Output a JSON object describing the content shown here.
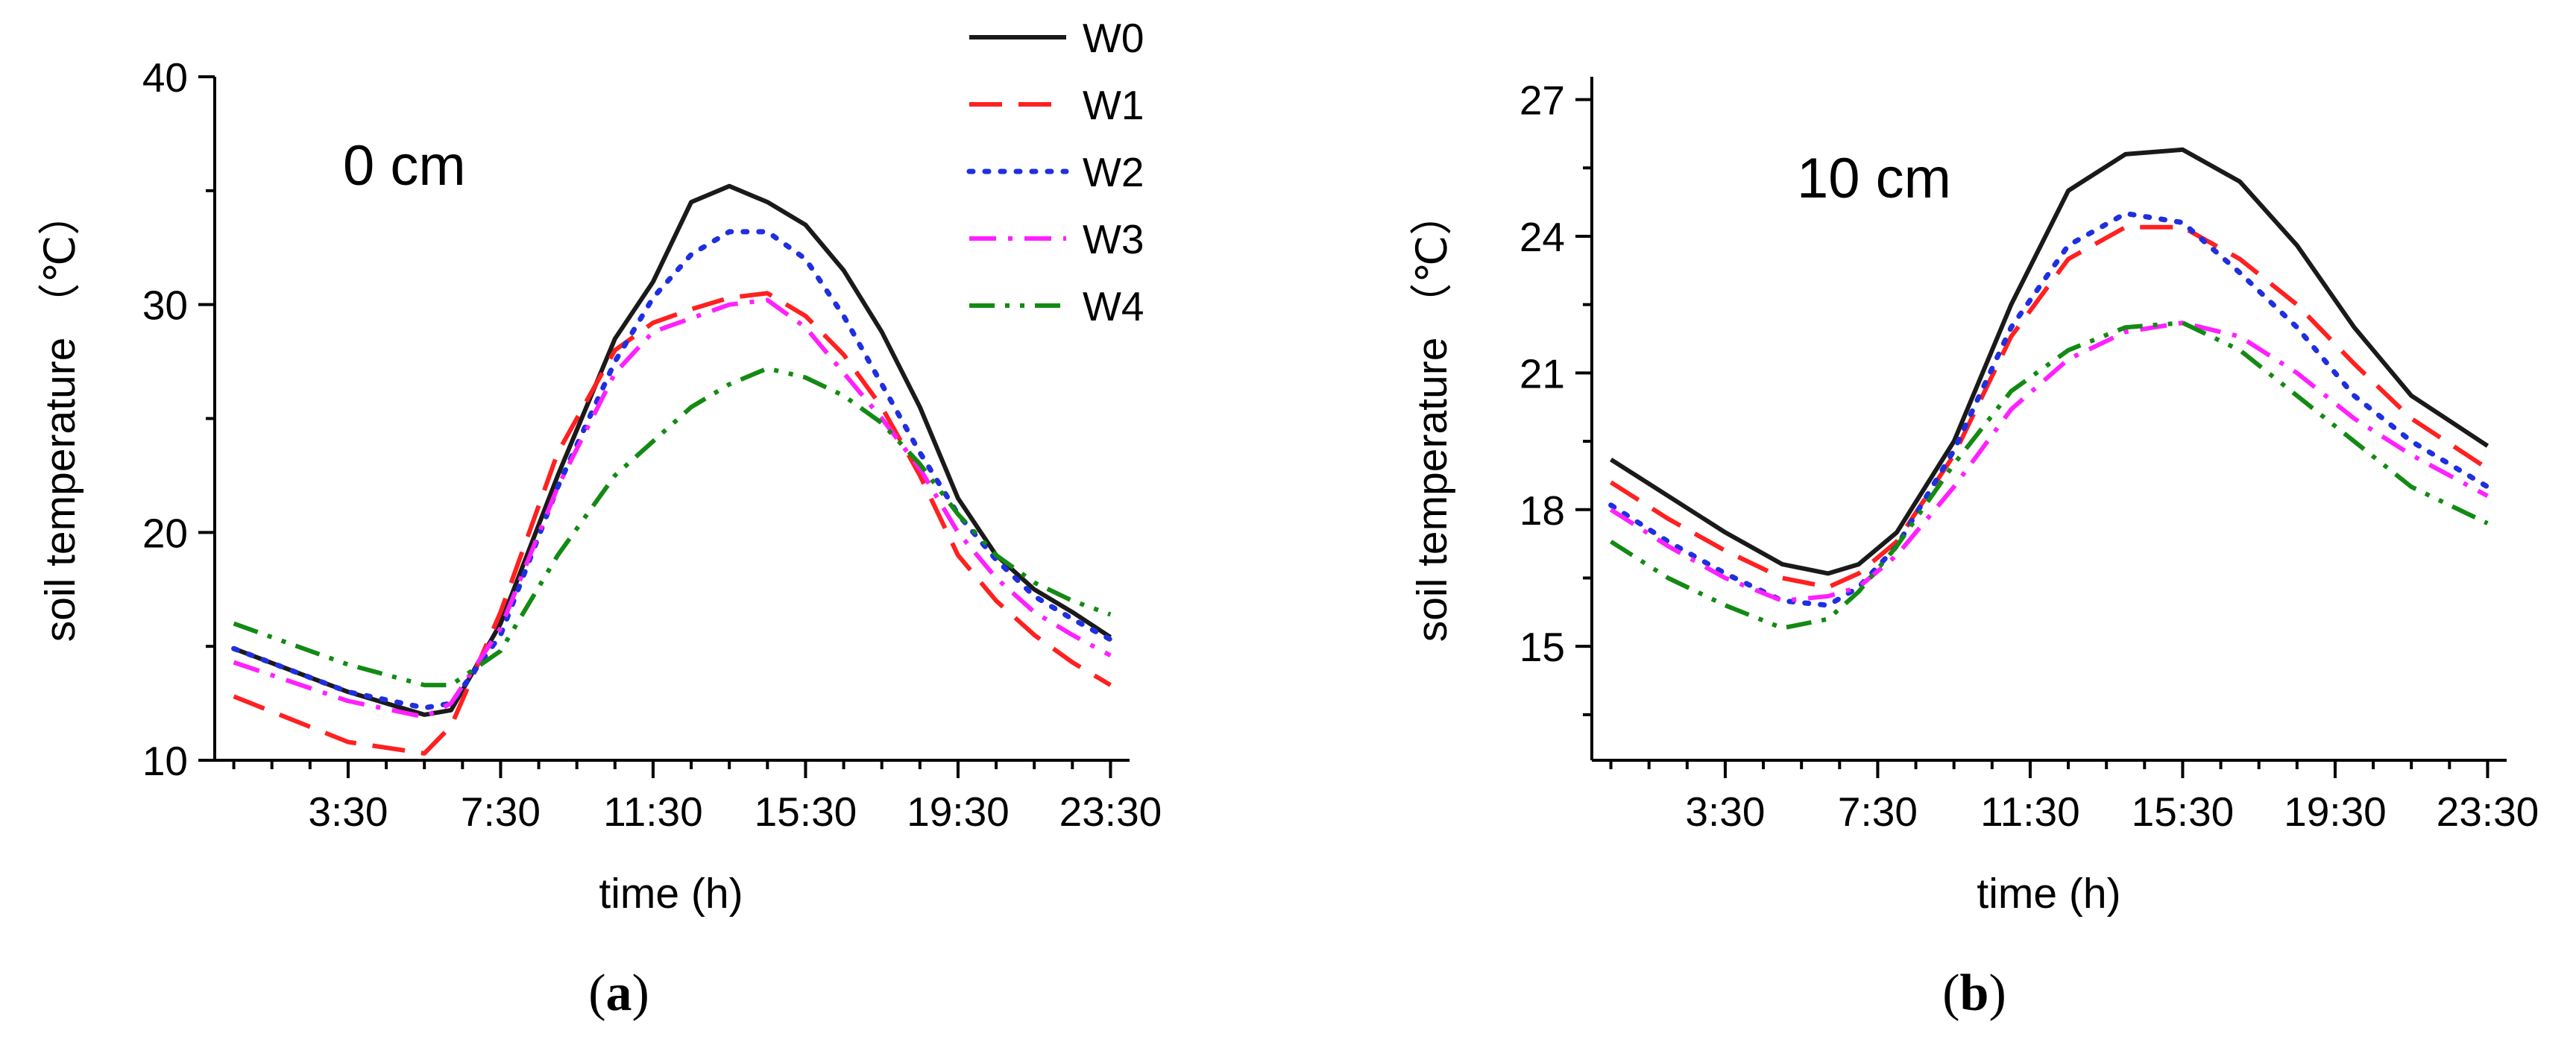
{
  "figure": {
    "legend": {
      "entries": [
        "W0",
        "W1",
        "W2",
        "W3",
        "W4"
      ],
      "placement": "top-right of panel (a)"
    },
    "series_styles": [
      {
        "name": "W0",
        "color": "#1a1a1a",
        "dash": "solid"
      },
      {
        "name": "W1",
        "color": "#ff2020",
        "dash": "dash"
      },
      {
        "name": "W2",
        "color": "#1f2fe0",
        "dash": "dot"
      },
      {
        "name": "W3",
        "color": "#ff20ff",
        "dash": "dashdot"
      },
      {
        "name": "W4",
        "color": "#138a13",
        "dash": "dashdotdot"
      }
    ]
  },
  "chart_data": [
    {
      "type": "line",
      "panel": "a",
      "caption": "(a)",
      "caption_letter": "a",
      "annotation": "0 cm",
      "title": "",
      "xlabel": "time (h)",
      "ylabel": "soil temperature （℃）",
      "xlim": [
        0,
        24
      ],
      "ylim": [
        10,
        40
      ],
      "x_tick_values": [
        3.5,
        7.5,
        11.5,
        15.5,
        19.5,
        23.5
      ],
      "x_tick_labels": [
        "3:30",
        "7:30",
        "11:30",
        "15:30",
        "19:30",
        "23:30"
      ],
      "y_ticks": [
        10,
        20,
        30,
        40
      ],
      "y_tick_labels": [
        "10",
        "20",
        "30",
        "40"
      ],
      "y_minor_ticks": [
        15,
        25,
        35
      ],
      "series": [
        {
          "name": "W0",
          "x": [
            0.5,
            3.5,
            5.5,
            6.2,
            7.5,
            9.0,
            10.5,
            11.5,
            12.5,
            13.5,
            14.5,
            15.5,
            16.5,
            17.5,
            18.5,
            19.5,
            20.5,
            21.5,
            22.5,
            23.5
          ],
          "values": [
            14.9,
            13.0,
            12.0,
            12.2,
            16.0,
            22.5,
            28.5,
            31.0,
            34.5,
            35.2,
            34.5,
            33.5,
            31.5,
            28.8,
            25.5,
            21.5,
            19.0,
            17.5,
            16.5,
            15.4
          ]
        },
        {
          "name": "W1",
          "x": [
            0.5,
            3.5,
            5.5,
            6.2,
            7.5,
            9.0,
            10.5,
            11.5,
            12.5,
            13.5,
            14.5,
            15.5,
            16.5,
            17.5,
            18.5,
            19.5,
            20.5,
            21.5,
            22.5,
            23.5
          ],
          "values": [
            12.8,
            10.8,
            10.3,
            11.5,
            16.5,
            23.5,
            28.0,
            29.2,
            29.8,
            30.3,
            30.5,
            29.5,
            27.8,
            25.5,
            22.5,
            19.0,
            17.0,
            15.5,
            14.3,
            13.3
          ]
        },
        {
          "name": "W2",
          "x": [
            0.5,
            3.5,
            5.5,
            6.2,
            7.5,
            9.0,
            10.5,
            11.5,
            12.5,
            13.5,
            14.5,
            15.5,
            16.5,
            17.5,
            18.5,
            19.5,
            20.5,
            21.5,
            22.5,
            23.5
          ],
          "values": [
            14.9,
            13.0,
            12.3,
            12.5,
            15.5,
            22.0,
            27.5,
            30.3,
            32.2,
            33.2,
            33.2,
            32.0,
            29.5,
            26.5,
            23.5,
            20.8,
            18.8,
            17.2,
            16.2,
            15.3
          ]
        },
        {
          "name": "W3",
          "x": [
            0.5,
            3.5,
            5.5,
            6.2,
            7.5,
            9.0,
            10.5,
            11.5,
            12.5,
            13.5,
            14.5,
            15.5,
            16.5,
            17.5,
            18.5,
            19.5,
            20.5,
            21.5,
            22.5,
            23.5
          ],
          "values": [
            14.3,
            12.6,
            11.9,
            12.5,
            15.8,
            22.0,
            27.0,
            28.8,
            29.4,
            30.0,
            30.2,
            29.0,
            27.0,
            25.0,
            22.8,
            20.0,
            18.0,
            16.5,
            15.5,
            14.6
          ]
        },
        {
          "name": "W4",
          "x": [
            0.5,
            3.5,
            5.5,
            6.2,
            7.5,
            9.0,
            10.5,
            11.5,
            12.5,
            13.5,
            14.5,
            15.5,
            16.5,
            17.5,
            18.5,
            19.5,
            20.5,
            21.5,
            22.5,
            23.5
          ],
          "values": [
            16.0,
            14.2,
            13.3,
            13.3,
            14.8,
            19.0,
            22.5,
            24.0,
            25.5,
            26.5,
            27.2,
            26.8,
            26.0,
            24.8,
            23.0,
            20.8,
            19.0,
            17.8,
            17.0,
            16.4
          ]
        }
      ]
    },
    {
      "type": "line",
      "panel": "b",
      "caption": "(b)",
      "caption_letter": "b",
      "annotation": "10 cm",
      "title": "",
      "xlabel": "time (h)",
      "ylabel": "soil temperature （℃）",
      "xlim": [
        0,
        24
      ],
      "ylim": [
        12.5,
        27.5
      ],
      "x_tick_values": [
        3.5,
        7.5,
        11.5,
        15.5,
        19.5,
        23.5
      ],
      "x_tick_labels": [
        "3:30",
        "7:30",
        "11:30",
        "15:30",
        "19:30",
        "23:30"
      ],
      "y_ticks": [
        15,
        18,
        21,
        24,
        27
      ],
      "y_tick_labels": [
        "15",
        "18",
        "21",
        "24",
        "27"
      ],
      "y_minor_ticks": [
        13.5,
        16.5,
        19.5,
        22.5,
        25.5
      ],
      "series": [
        {
          "name": "W0",
          "x": [
            0.5,
            2.0,
            3.5,
            5.0,
            6.2,
            7.0,
            8.0,
            9.5,
            11.0,
            12.5,
            14.0,
            15.5,
            17.0,
            18.5,
            20.0,
            21.5,
            23.5
          ],
          "values": [
            19.1,
            18.3,
            17.5,
            16.8,
            16.6,
            16.8,
            17.5,
            19.5,
            22.5,
            25.0,
            25.8,
            25.9,
            25.2,
            23.8,
            22.0,
            20.5,
            19.4
          ]
        },
        {
          "name": "W1",
          "x": [
            0.5,
            2.0,
            3.5,
            5.0,
            6.2,
            7.0,
            8.0,
            9.5,
            11.0,
            12.5,
            14.0,
            15.5,
            17.0,
            18.5,
            20.0,
            21.5,
            23.5
          ],
          "values": [
            18.6,
            17.8,
            17.1,
            16.5,
            16.3,
            16.6,
            17.3,
            19.2,
            21.8,
            23.5,
            24.2,
            24.2,
            23.5,
            22.5,
            21.2,
            20.0,
            18.9
          ]
        },
        {
          "name": "W2",
          "x": [
            0.5,
            2.0,
            3.5,
            5.0,
            6.2,
            7.0,
            8.0,
            9.5,
            11.0,
            12.5,
            14.0,
            15.5,
            17.0,
            18.5,
            20.0,
            21.5,
            23.5
          ],
          "values": [
            18.1,
            17.3,
            16.6,
            16.0,
            15.9,
            16.3,
            17.2,
            19.3,
            22.0,
            23.8,
            24.5,
            24.3,
            23.2,
            22.0,
            20.5,
            19.5,
            18.5
          ]
        },
        {
          "name": "W3",
          "x": [
            0.5,
            2.0,
            3.5,
            5.0,
            6.2,
            7.0,
            8.0,
            9.5,
            11.0,
            12.5,
            14.0,
            15.5,
            17.0,
            18.5,
            20.0,
            21.5,
            23.5
          ],
          "values": [
            18.0,
            17.2,
            16.5,
            16.0,
            16.1,
            16.3,
            17.0,
            18.5,
            20.2,
            21.3,
            21.9,
            22.1,
            21.8,
            21.0,
            20.0,
            19.2,
            18.3
          ]
        },
        {
          "name": "W4",
          "x": [
            0.5,
            2.0,
            3.5,
            5.0,
            6.2,
            7.0,
            8.0,
            9.5,
            11.0,
            12.5,
            14.0,
            15.5,
            17.0,
            18.5,
            20.0,
            21.5,
            23.5
          ],
          "values": [
            17.3,
            16.5,
            15.9,
            15.4,
            15.6,
            16.2,
            17.2,
            19.0,
            20.6,
            21.5,
            22.0,
            22.1,
            21.5,
            20.5,
            19.5,
            18.5,
            17.7
          ]
        }
      ]
    }
  ]
}
